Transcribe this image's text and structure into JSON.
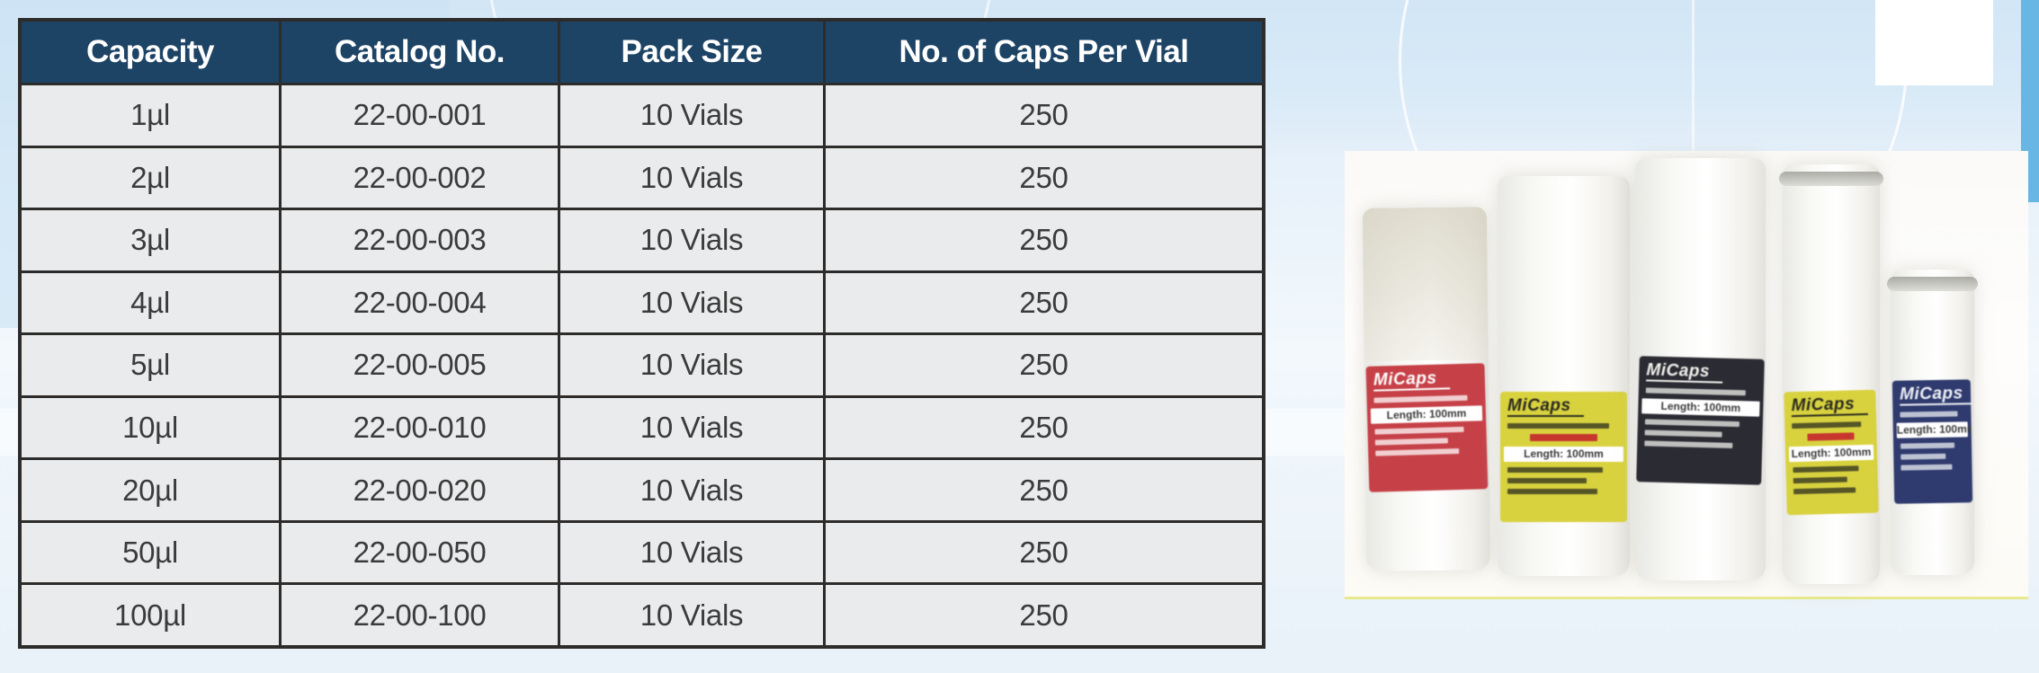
{
  "table": {
    "columns": [
      "Capacity",
      "Catalog No.",
      "Pack Size",
      "No. of Caps Per Vial"
    ],
    "row_field_order": [
      "capacity",
      "catalog_no",
      "pack_size",
      "caps_per_vial"
    ],
    "rows": [
      {
        "capacity": "1µl",
        "catalog_no": "22-00-001",
        "pack_size": "10 Vials",
        "caps_per_vial": "250"
      },
      {
        "capacity": "2µl",
        "catalog_no": "22-00-002",
        "pack_size": "10 Vials",
        "caps_per_vial": "250"
      },
      {
        "capacity": "3µl",
        "catalog_no": "22-00-003",
        "pack_size": "10 Vials",
        "caps_per_vial": "250"
      },
      {
        "capacity": "4µl",
        "catalog_no": "22-00-004",
        "pack_size": "10 Vials",
        "caps_per_vial": "250"
      },
      {
        "capacity": "5µl",
        "catalog_no": "22-00-005",
        "pack_size": "10 Vials",
        "caps_per_vial": "250"
      },
      {
        "capacity": "10µl",
        "catalog_no": "22-00-010",
        "pack_size": "10 Vials",
        "caps_per_vial": "250"
      },
      {
        "capacity": "20µl",
        "catalog_no": "22-00-020",
        "pack_size": "10 Vials",
        "caps_per_vial": "250"
      },
      {
        "capacity": "50µl",
        "catalog_no": "22-00-050",
        "pack_size": "10 Vials",
        "caps_per_vial": "250"
      },
      {
        "capacity": "100µl",
        "catalog_no": "22-00-100",
        "pack_size": "10 Vials",
        "caps_per_vial": "250"
      }
    ]
  },
  "product_photo": {
    "brand": "MiCaps",
    "vials": [
      {
        "variant": "red-label-vial",
        "label_color": "#c64047",
        "text_color": "#ffffff",
        "accent_color": "",
        "band_text": "Length: 100mm"
      },
      {
        "variant": "yellow-label-vial",
        "label_color": "#d8d23f",
        "text_color": "#2b2b1f",
        "accent_color": "#c8372e",
        "band_text": "Length: 100mm"
      },
      {
        "variant": "black-label-vial",
        "label_color": "#2b2b33",
        "text_color": "#f2f2ee",
        "accent_color": "",
        "band_text": "Length: 100mm"
      },
      {
        "variant": "yellow-label-vial",
        "label_color": "#d8d23f",
        "text_color": "#2b2b1f",
        "accent_color": "#c8372e",
        "band_text": "Length: 100mm"
      },
      {
        "variant": "navy-label-vial",
        "label_color": "#2f3a6e",
        "text_color": "#eef0f5",
        "accent_color": "",
        "band_text": "Length: 100mm"
      }
    ]
  },
  "colors": {
    "header_bg": "#1d4365",
    "header_text": "#ffffff",
    "table_border": "#2e2c2b",
    "page_top_blue": "#d2e6f6",
    "accent_strip_blue": "#68b6e3",
    "photo_background": "#fdfcf8"
  }
}
